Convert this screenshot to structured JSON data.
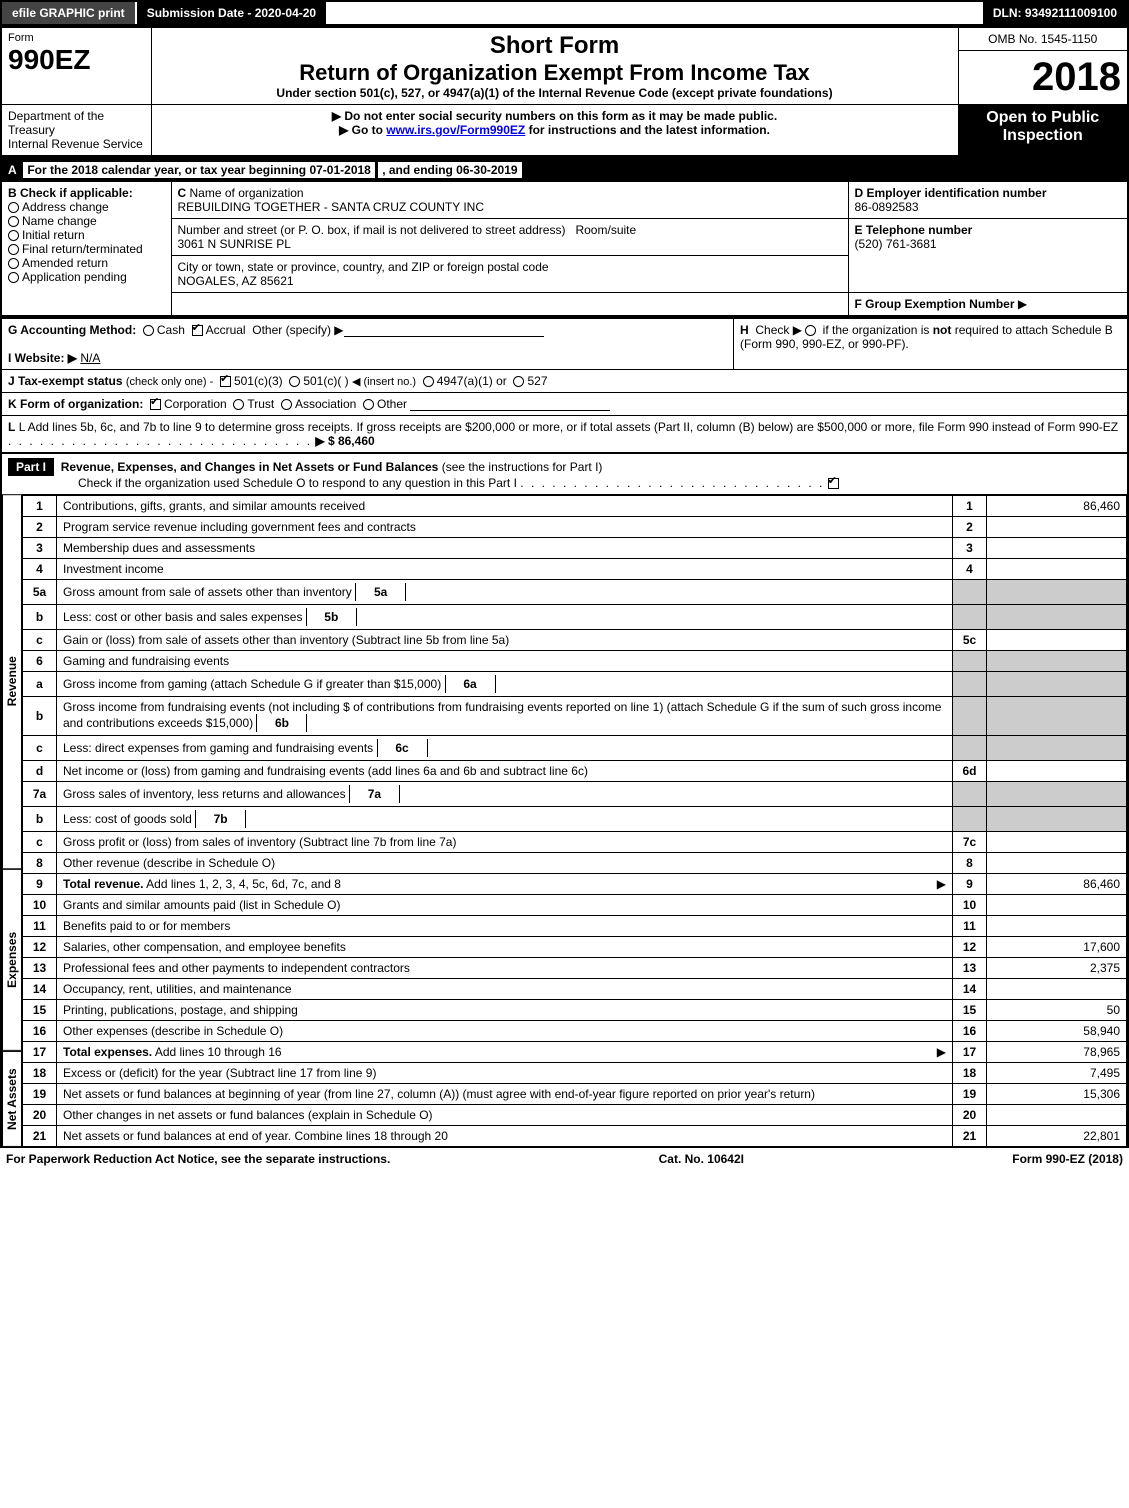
{
  "topbar": {
    "efile_label": "efile GRAPHIC print",
    "submission_label": "Submission Date - 2020-04-20",
    "dln_label": "DLN: 93492111009100"
  },
  "header": {
    "form_word": "Form",
    "form_number": "990EZ",
    "short_form": "Short Form",
    "main_title": "Return of Organization Exempt From Income Tax",
    "subtitle": "Under section 501(c), 527, or 4947(a)(1) of the Internal Revenue Code (except private foundations)",
    "omb": "OMB No. 1545-1150",
    "tax_year": "2018",
    "dept": "Department of the Treasury\nInternal Revenue Service",
    "note1": "Do not enter social security numbers on this form as it may be made public.",
    "note2_prefix": "Go to ",
    "note2_link": "www.irs.gov/Form990EZ",
    "note2_suffix": " for instructions and the latest information.",
    "open_to": "Open to Public Inspection"
  },
  "period": {
    "line_a": "For the 2018 calendar year, or tax year beginning 07-01-2018",
    "ending": ", and ending 06-30-2019"
  },
  "blockB": {
    "title": "B",
    "check_if": "Check if applicable:",
    "address_change": "Address change",
    "name_change": "Name change",
    "initial_return": "Initial return",
    "final_return": "Final return/terminated",
    "amended_return": "Amended return",
    "application_pending": "Application pending"
  },
  "blockC": {
    "c_label": "C",
    "name_label": "Name of organization",
    "org_name": "REBUILDING TOGETHER - SANTA CRUZ COUNTY INC",
    "street_label": "Number and street (or P. O. box, if mail is not delivered to street address)",
    "room_label": "Room/suite",
    "street": "3061 N SUNRISE PL",
    "city_label": "City or town, state or province, country, and ZIP or foreign postal code",
    "city": "NOGALES, AZ  85621"
  },
  "blockD": {
    "label": "D Employer identification number",
    "value": "86-0892583"
  },
  "blockE": {
    "label": "E Telephone number",
    "value": "(520) 761-3681"
  },
  "blockF": {
    "label": "F Group Exemption Number",
    "arrow": "▶"
  },
  "blockG": {
    "label": "G Accounting Method:",
    "cash": "Cash",
    "accrual": "Accrual",
    "other": "Other (specify) ▶"
  },
  "blockH": {
    "text": "Check ▶        if the organization is not required to attach Schedule B (Form 990, 990-EZ, or 990-PF).",
    "prefix": "H"
  },
  "blockI": {
    "label": "I Website: ▶",
    "value": "N/A"
  },
  "blockJ": {
    "label": "J Tax-exempt status",
    "hint": "(check only one) -",
    "o1": "501(c)(3)",
    "o2": "501(c)(   )",
    "o2_hint": "◀ (insert no.)",
    "o3": "4947(a)(1) or",
    "o4": "527"
  },
  "blockK": {
    "label": "K Form of organization:",
    "corp": "Corporation",
    "trust": "Trust",
    "assoc": "Association",
    "other": "Other"
  },
  "blockL": {
    "text": "L Add lines 5b, 6c, and 7b to line 9 to determine gross receipts. If gross receipts are $200,000 or more, or if total assets (Part II, column (B) below) are $500,000 or more, file Form 990 instead of Form 990-EZ",
    "amount_label": "▶ $ 86,460"
  },
  "part1": {
    "tag": "Part I",
    "title": "Revenue, Expenses, and Changes in Net Assets or Fund Balances",
    "hint": "(see the instructions for Part I)",
    "check_line": "Check if the organization used Schedule O to respond to any question in this Part I",
    "checked": true
  },
  "side_labels": {
    "revenue": "Revenue",
    "expenses": "Expenses",
    "net_assets": "Net Assets"
  },
  "lines": [
    {
      "n": "1",
      "desc": "Contributions, gifts, grants, and similar amounts received",
      "ref": "1",
      "amt": "86,460"
    },
    {
      "n": "2",
      "desc": "Program service revenue including government fees and contracts",
      "ref": "2",
      "amt": ""
    },
    {
      "n": "3",
      "desc": "Membership dues and assessments",
      "ref": "3",
      "amt": ""
    },
    {
      "n": "4",
      "desc": "Investment income",
      "ref": "4",
      "amt": ""
    },
    {
      "n": "5a",
      "desc": "Gross amount from sale of assets other than inventory",
      "mini": "5a",
      "grey": true
    },
    {
      "n": "b",
      "desc": "Less: cost or other basis and sales expenses",
      "mini": "5b",
      "grey": true
    },
    {
      "n": "c",
      "desc": "Gain or (loss) from sale of assets other than inventory (Subtract line 5b from line 5a)",
      "ref": "5c",
      "amt": ""
    },
    {
      "n": "6",
      "desc": "Gaming and fundraising events",
      "grey_full": true
    },
    {
      "n": "a",
      "desc": "Gross income from gaming (attach Schedule G if greater than $15,000)",
      "mini": "6a",
      "grey": true
    },
    {
      "n": "b",
      "desc": "Gross income from fundraising events (not including $              of contributions from fundraising events reported on line 1) (attach Schedule G if the sum of such gross income and contributions exceeds $15,000)",
      "mini": "6b",
      "grey": true
    },
    {
      "n": "c",
      "desc": "Less: direct expenses from gaming and fundraising events",
      "mini": "6c",
      "grey": true
    },
    {
      "n": "d",
      "desc": "Net income or (loss) from gaming and fundraising events (add lines 6a and 6b and subtract line 6c)",
      "ref": "6d",
      "amt": ""
    },
    {
      "n": "7a",
      "desc": "Gross sales of inventory, less returns and allowances",
      "mini": "7a",
      "grey": true
    },
    {
      "n": "b",
      "desc": "Less: cost of goods sold",
      "mini": "7b",
      "grey": true
    },
    {
      "n": "c",
      "desc": "Gross profit or (loss) from sales of inventory (Subtract line 7b from line 7a)",
      "ref": "7c",
      "amt": ""
    },
    {
      "n": "8",
      "desc": "Other revenue (describe in Schedule O)",
      "ref": "8",
      "amt": ""
    },
    {
      "n": "9",
      "desc": "Total revenue. Add lines 1, 2, 3, 4, 5c, 6d, 7c, and 8",
      "ref": "9",
      "amt": "86,460",
      "bold": true,
      "arrow": true
    },
    {
      "n": "10",
      "desc": "Grants and similar amounts paid (list in Schedule O)",
      "ref": "10",
      "amt": ""
    },
    {
      "n": "11",
      "desc": "Benefits paid to or for members",
      "ref": "11",
      "amt": ""
    },
    {
      "n": "12",
      "desc": "Salaries, other compensation, and employee benefits",
      "ref": "12",
      "amt": "17,600"
    },
    {
      "n": "13",
      "desc": "Professional fees and other payments to independent contractors",
      "ref": "13",
      "amt": "2,375"
    },
    {
      "n": "14",
      "desc": "Occupancy, rent, utilities, and maintenance",
      "ref": "14",
      "amt": ""
    },
    {
      "n": "15",
      "desc": "Printing, publications, postage, and shipping",
      "ref": "15",
      "amt": "50"
    },
    {
      "n": "16",
      "desc": "Other expenses (describe in Schedule O)",
      "ref": "16",
      "amt": "58,940"
    },
    {
      "n": "17",
      "desc": "Total expenses. Add lines 10 through 16",
      "ref": "17",
      "amt": "78,965",
      "bold": true,
      "arrow": true
    },
    {
      "n": "18",
      "desc": "Excess or (deficit) for the year (Subtract line 17 from line 9)",
      "ref": "18",
      "amt": "7,495"
    },
    {
      "n": "19",
      "desc": "Net assets or fund balances at beginning of year (from line 27, column (A)) (must agree with end-of-year figure reported on prior year's return)",
      "ref": "19",
      "amt": "15,306"
    },
    {
      "n": "20",
      "desc": "Other changes in net assets or fund balances (explain in Schedule O)",
      "ref": "20",
      "amt": ""
    },
    {
      "n": "21",
      "desc": "Net assets or fund balances at end of year. Combine lines 18 through 20",
      "ref": "21",
      "amt": "22,801"
    }
  ],
  "footer": {
    "left": "For Paperwork Reduction Act Notice, see the separate instructions.",
    "mid": "Cat. No. 10642I",
    "right": "Form 990-EZ (2018)"
  }
}
